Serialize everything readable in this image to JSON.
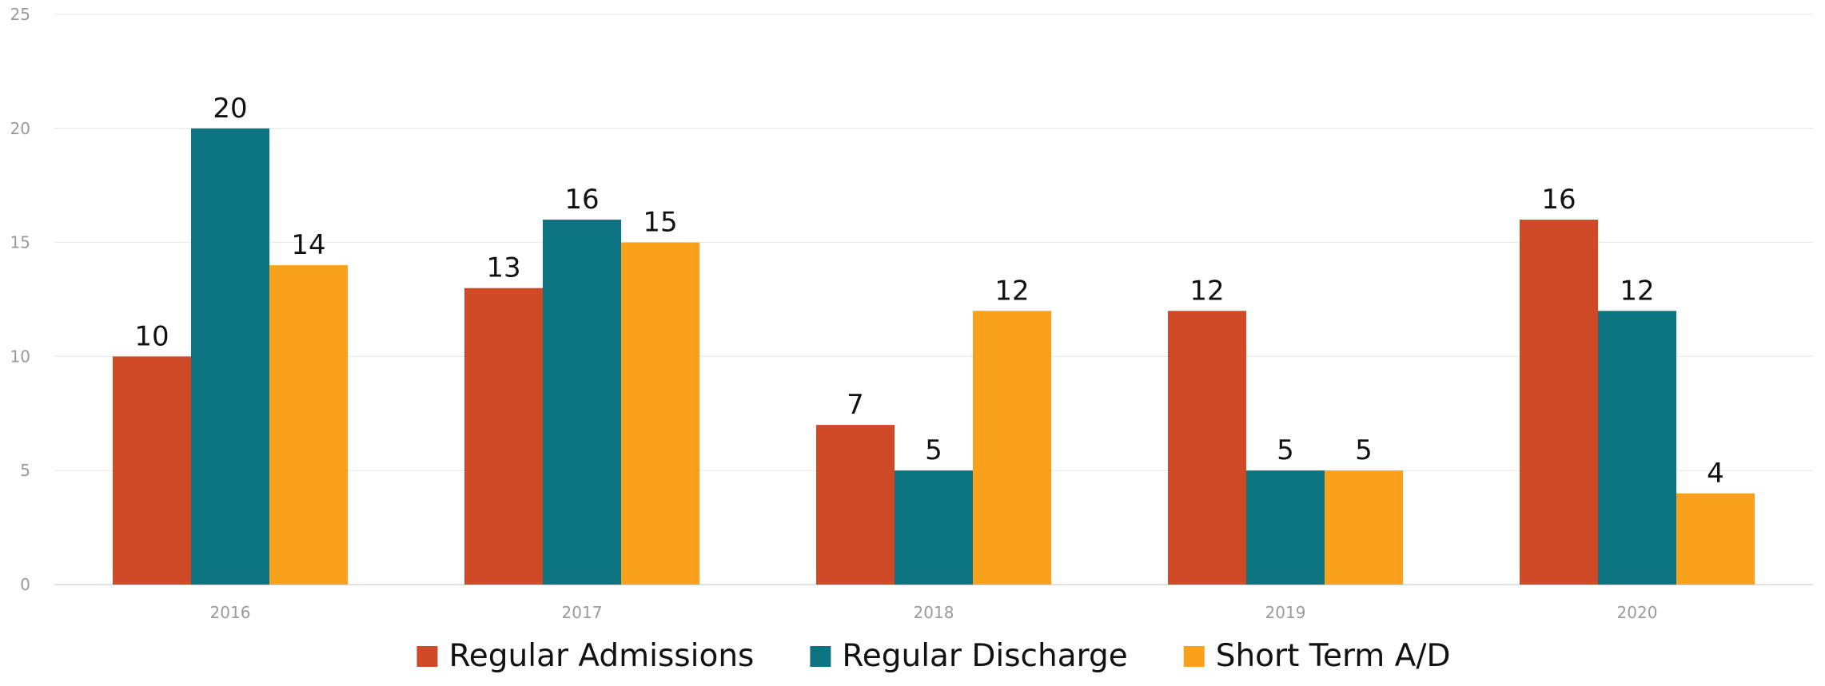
{
  "chart_data": {
    "type": "bar",
    "title": "",
    "xlabel": "",
    "ylabel": "",
    "categories": [
      "2016",
      "2017",
      "2018",
      "2019",
      "2020"
    ],
    "series": [
      {
        "name": "Regular Admissions",
        "color": "#d14a27",
        "values": [
          10,
          13,
          7,
          12,
          16
        ]
      },
      {
        "name": "Regular Discharge",
        "color": "#0c7480",
        "values": [
          20,
          16,
          5,
          5,
          12
        ]
      },
      {
        "name": "Short Term A/D",
        "color": "#f9a11b",
        "values": [
          14,
          15,
          12,
          5,
          4
        ]
      }
    ],
    "ylim": [
      0,
      25
    ],
    "yticks": [
      0,
      5,
      10,
      15,
      20,
      25
    ],
    "grid": true,
    "legend_position": "bottom",
    "data_labels": true
  }
}
